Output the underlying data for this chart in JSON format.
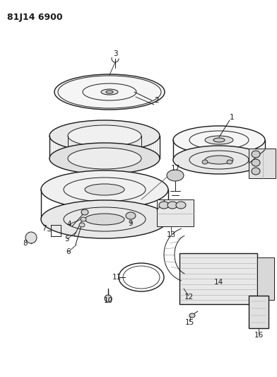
{
  "title": "81J14 6900",
  "bg_color": "#ffffff",
  "line_color": "#1a1a1a",
  "title_fontsize": 9,
  "label_fontsize": 7.5,
  "fig_width": 3.92,
  "fig_height": 5.33,
  "dpi": 100
}
